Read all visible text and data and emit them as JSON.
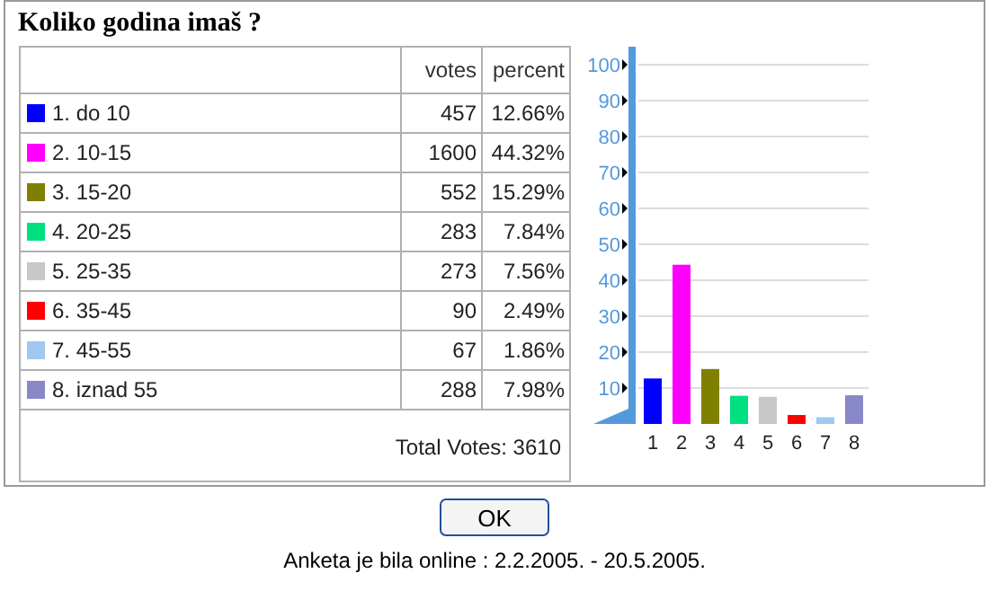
{
  "chart_data": [
    {
      "type": "other",
      "title": "Koliko godina imaš ?",
      "categories": [
        "1. do 10",
        "2. 10-15",
        "3. 15-20",
        "4. 20-25",
        "5. 25-35",
        "6. 35-45",
        "7. 45-55",
        "8. iznad 55"
      ],
      "colors": [
        "#0000ff",
        "#ff00ff",
        "#808000",
        "#00e080",
        "#c8c8c8",
        "#ff0000",
        "#a0c8f0",
        "#8888c8"
      ],
      "series": [
        {
          "name": "votes",
          "values": [
            457,
            1600,
            552,
            283,
            273,
            90,
            67,
            288
          ]
        },
        {
          "name": "percent",
          "values": [
            12.66,
            44.32,
            15.29,
            7.84,
            7.56,
            2.49,
            1.86,
            7.98
          ],
          "value_labels": [
            "12.66%",
            "44.32%",
            "15.29%",
            "7.84%",
            "7.56%",
            "2.49%",
            "1.86%",
            "7.98%"
          ]
        }
      ],
      "data_labels": true,
      "annotations": [
        "Total Votes: 3610",
        "OK"
      ]
    },
    {
      "type": "bar",
      "categories": [
        "1",
        "2",
        "3",
        "4",
        "5",
        "6",
        "7",
        "8"
      ],
      "values": [
        12.66,
        44.32,
        15.29,
        7.84,
        7.56,
        2.49,
        1.86,
        7.98
      ],
      "colors": [
        "#0000ff",
        "#ff00ff",
        "#808000",
        "#00e080",
        "#c8c8c8",
        "#ff0000",
        "#a0c8f0",
        "#8888c8"
      ],
      "ylim": [
        0,
        100
      ],
      "yticks": [
        10,
        20,
        30,
        40,
        50,
        60,
        70,
        80,
        90,
        100
      ],
      "grid": "y",
      "annotations": [
        "Anketa je bila online : 2.2.2005. - 20.5.2005."
      ]
    }
  ]
}
